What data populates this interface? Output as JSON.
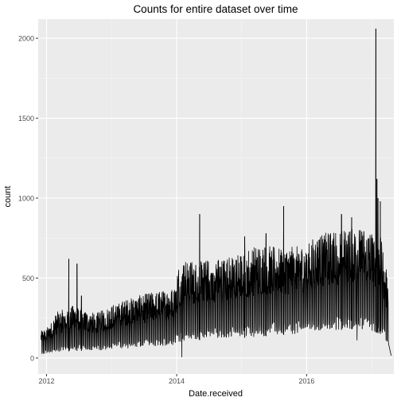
{
  "chart_data": {
    "type": "line",
    "title": "Counts for entire dataset over time",
    "xlabel": "Date.received",
    "ylabel": "count",
    "x_axis_kind": "date",
    "xlim": [
      "2011-11-15",
      "2017-05-05"
    ],
    "ylim": [
      -100,
      2120
    ],
    "x_ticks": [
      {
        "date": "2012-01-01",
        "label": "2012"
      },
      {
        "date": "2014-01-01",
        "label": "2014"
      },
      {
        "date": "2016-01-01",
        "label": "2016"
      }
    ],
    "y_ticks": [
      0,
      500,
      1000,
      1500,
      2000
    ],
    "grid": true,
    "legend": "none",
    "colors": {
      "panel": "#ebebeb",
      "grid_major": "#ffffff",
      "grid_minor": "#f5f5f5",
      "line": "#000000",
      "tick_text": "#4d4d4d",
      "title_text": "#000000"
    },
    "weekly_envelope": [
      {
        "date": "2011-12-01",
        "low": 20,
        "high": 170
      },
      {
        "date": "2012-01-15",
        "low": 30,
        "high": 200
      },
      {
        "date": "2012-03-01",
        "low": 35,
        "high": 290
      },
      {
        "date": "2012-04-15",
        "low": 40,
        "high": 310
      },
      {
        "date": "2012-06-01",
        "low": 45,
        "high": 330
      },
      {
        "date": "2012-08-01",
        "low": 45,
        "high": 300
      },
      {
        "date": "2012-10-01",
        "low": 45,
        "high": 280
      },
      {
        "date": "2012-12-01",
        "low": 50,
        "high": 310
      },
      {
        "date": "2013-02-01",
        "low": 60,
        "high": 350
      },
      {
        "date": "2013-04-01",
        "low": 60,
        "high": 370
      },
      {
        "date": "2013-06-01",
        "low": 65,
        "high": 390
      },
      {
        "date": "2013-08-01",
        "low": 70,
        "high": 410
      },
      {
        "date": "2013-10-01",
        "low": 75,
        "high": 420
      },
      {
        "date": "2013-12-15",
        "low": 80,
        "high": 440
      },
      {
        "date": "2014-01-10",
        "low": 100,
        "high": 580
      },
      {
        "date": "2014-03-01",
        "low": 110,
        "high": 620
      },
      {
        "date": "2014-05-01",
        "low": 110,
        "high": 600
      },
      {
        "date": "2014-07-01",
        "low": 120,
        "high": 620
      },
      {
        "date": "2014-09-01",
        "low": 120,
        "high": 630
      },
      {
        "date": "2014-11-01",
        "low": 120,
        "high": 640
      },
      {
        "date": "2015-01-01",
        "low": 125,
        "high": 660
      },
      {
        "date": "2015-03-01",
        "low": 130,
        "high": 700
      },
      {
        "date": "2015-05-01",
        "low": 135,
        "high": 710
      },
      {
        "date": "2015-07-01",
        "low": 140,
        "high": 700
      },
      {
        "date": "2015-09-01",
        "low": 145,
        "high": 690
      },
      {
        "date": "2015-11-01",
        "low": 150,
        "high": 700
      },
      {
        "date": "2016-01-01",
        "low": 160,
        "high": 720
      },
      {
        "date": "2016-03-01",
        "low": 170,
        "high": 770
      },
      {
        "date": "2016-05-01",
        "low": 175,
        "high": 790
      },
      {
        "date": "2016-07-01",
        "low": 175,
        "high": 800
      },
      {
        "date": "2016-09-01",
        "low": 180,
        "high": 810
      },
      {
        "date": "2016-11-01",
        "low": 180,
        "high": 820
      },
      {
        "date": "2016-12-31",
        "low": 170,
        "high": 800
      },
      {
        "date": "2017-02-20",
        "low": 150,
        "high": 760
      },
      {
        "date": "2017-04-05",
        "low": 80,
        "high": 480
      }
    ],
    "spikes": [
      {
        "date": "2012-05-05",
        "value": 620
      },
      {
        "date": "2012-06-20",
        "value": 590
      },
      {
        "date": "2012-07-15",
        "value": 390
      },
      {
        "date": "2014-05-10",
        "value": 900
      },
      {
        "date": "2015-01-18",
        "value": 760
      },
      {
        "date": "2015-05-18",
        "value": 780
      },
      {
        "date": "2015-08-25",
        "value": 950
      },
      {
        "date": "2016-07-15",
        "value": 900
      },
      {
        "date": "2016-09-10",
        "value": 880
      },
      {
        "date": "2017-01-24",
        "value": 2060
      },
      {
        "date": "2017-01-30",
        "value": 1120
      },
      {
        "date": "2017-02-05",
        "value": 1000
      },
      {
        "date": "2017-02-18",
        "value": 980
      }
    ],
    "dips": [
      {
        "date": "2014-01-30",
        "value": 5
      },
      {
        "date": "2016-10-10",
        "value": 110
      }
    ],
    "series_end": {
      "date": "2017-04-20",
      "value": 15
    }
  }
}
